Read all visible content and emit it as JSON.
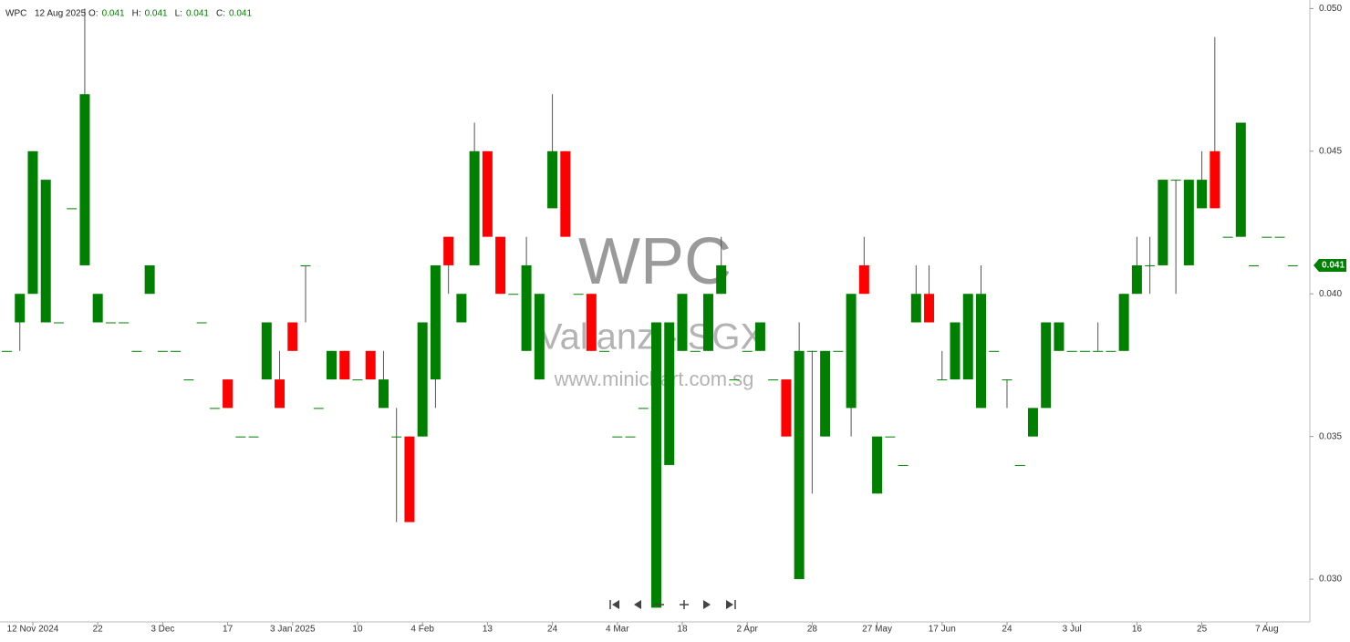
{
  "header": {
    "symbol": "WPC",
    "date": "12 Aug 2025",
    "fields": [
      {
        "label": "O:",
        "value": 0.041
      },
      {
        "label": "H:",
        "value": 0.041
      },
      {
        "label": "L:",
        "value": 0.041
      },
      {
        "label": "C:",
        "value": 0.041
      }
    ]
  },
  "watermark": {
    "title": "WPC",
    "subtitle": "Valianz - SGX",
    "url": "www.minichart.com.sg"
  },
  "chart_data": {
    "type": "candlestick",
    "title": "WPC",
    "categories": [
      null,
      null,
      "12 Nov 2024",
      null,
      null,
      null,
      null,
      "22",
      null,
      null,
      null,
      null,
      "3 Dec",
      null,
      null,
      null,
      null,
      "17",
      null,
      null,
      null,
      null,
      "3 Jan 2025",
      null,
      null,
      null,
      null,
      "10",
      null,
      null,
      null,
      null,
      "4 Feb",
      null,
      null,
      null,
      null,
      "13",
      null,
      null,
      null,
      null,
      "24",
      null,
      null,
      null,
      null,
      "4 Mar",
      null,
      null,
      null,
      null,
      "18",
      null,
      null,
      null,
      null,
      "2 Apr",
      null,
      null,
      null,
      null,
      "28",
      null,
      null,
      null,
      null,
      "27 May",
      null,
      null,
      null,
      null,
      "17 Jun",
      null,
      null,
      null,
      null,
      "24",
      null,
      null,
      null,
      null,
      "3 Jul",
      null,
      null,
      null,
      null,
      "16",
      null,
      null,
      null,
      null,
      "25",
      null,
      null,
      null,
      null,
      "7 Aug",
      null,
      null
    ],
    "open": [
      0.038,
      0.039,
      0.04,
      0.039,
      0.039,
      0.043,
      0.041,
      0.039,
      0.039,
      0.039,
      0.038,
      0.04,
      0.038,
      0.038,
      0.037,
      0.039,
      0.036,
      0.037,
      0.035,
      0.035,
      0.037,
      0.037,
      0.039,
      0.041,
      0.036,
      0.037,
      0.038,
      0.037,
      0.038,
      0.036,
      0.035,
      0.035,
      0.035,
      0.037,
      0.042,
      0.039,
      0.041,
      0.045,
      0.042,
      0.04,
      0.038,
      0.037,
      0.043,
      0.045,
      0.04,
      0.04,
      0.038,
      0.035,
      0.035,
      0.036,
      0.029,
      0.034,
      0.038,
      0.038,
      0.038,
      0.04,
      0.037,
      0.038,
      0.038,
      0.037,
      0.037,
      0.03,
      0.038,
      0.035,
      0.038,
      0.036,
      0.041,
      0.033,
      0.035,
      0.034,
      0.039,
      0.04,
      0.037,
      0.037,
      0.037,
      0.036,
      0.038,
      0.037,
      0.034,
      0.035,
      0.036,
      0.038,
      0.038,
      0.038,
      0.038,
      0.038,
      0.038,
      0.04,
      0.041,
      0.041,
      0.044,
      0.041,
      0.043,
      0.045,
      0.042,
      0.042,
      0.041,
      0.042,
      0.042,
      0.041
    ],
    "high": [
      0.038,
      0.04,
      0.045,
      0.044,
      0.039,
      0.043,
      0.05,
      0.04,
      0.039,
      0.039,
      0.038,
      0.041,
      0.038,
      0.038,
      0.037,
      0.039,
      0.036,
      0.037,
      0.035,
      0.035,
      0.039,
      0.038,
      0.039,
      0.041,
      0.036,
      0.038,
      0.038,
      0.037,
      0.038,
      0.038,
      0.036,
      0.035,
      0.039,
      0.041,
      0.042,
      0.04,
      0.046,
      0.045,
      0.042,
      0.04,
      0.042,
      0.04,
      0.047,
      0.045,
      0.04,
      0.04,
      0.038,
      0.035,
      0.035,
      0.036,
      0.039,
      0.039,
      0.04,
      0.038,
      0.04,
      0.042,
      0.037,
      0.038,
      0.039,
      0.037,
      0.037,
      0.039,
      0.038,
      0.038,
      0.038,
      0.04,
      0.042,
      0.035,
      0.035,
      0.034,
      0.041,
      0.041,
      0.038,
      0.039,
      0.04,
      0.041,
      0.038,
      0.037,
      0.034,
      0.036,
      0.039,
      0.039,
      0.038,
      0.038,
      0.039,
      0.038,
      0.04,
      0.042,
      0.042,
      0.044,
      0.044,
      0.044,
      0.045,
      0.049,
      0.042,
      0.046,
      0.041,
      0.042,
      0.042,
      0.041
    ],
    "low": [
      0.038,
      0.038,
      0.04,
      0.039,
      0.039,
      0.043,
      0.041,
      0.039,
      0.039,
      0.039,
      0.038,
      0.04,
      0.038,
      0.038,
      0.037,
      0.039,
      0.036,
      0.036,
      0.035,
      0.035,
      0.037,
      0.036,
      0.038,
      0.039,
      0.036,
      0.037,
      0.037,
      0.037,
      0.037,
      0.036,
      0.032,
      0.032,
      0.035,
      0.036,
      0.04,
      0.039,
      0.041,
      0.042,
      0.04,
      0.04,
      0.038,
      0.037,
      0.043,
      0.042,
      0.04,
      0.038,
      0.038,
      0.035,
      0.035,
      0.036,
      0.029,
      0.034,
      0.038,
      0.038,
      0.038,
      0.04,
      0.037,
      0.038,
      0.038,
      0.037,
      0.035,
      0.03,
      0.033,
      0.035,
      0.038,
      0.035,
      0.04,
      0.033,
      0.035,
      0.034,
      0.039,
      0.039,
      0.037,
      0.037,
      0.037,
      0.036,
      0.038,
      0.036,
      0.034,
      0.035,
      0.036,
      0.038,
      0.038,
      0.038,
      0.038,
      0.038,
      0.038,
      0.04,
      0.04,
      0.041,
      0.04,
      0.041,
      0.043,
      0.043,
      0.042,
      0.042,
      0.041,
      0.042,
      0.042,
      0.041
    ],
    "close": [
      0.038,
      0.04,
      0.045,
      0.044,
      0.039,
      0.043,
      0.047,
      0.04,
      0.039,
      0.039,
      0.038,
      0.041,
      0.038,
      0.038,
      0.037,
      0.039,
      0.036,
      0.036,
      0.035,
      0.035,
      0.039,
      0.036,
      0.038,
      0.041,
      0.036,
      0.038,
      0.037,
      0.037,
      0.037,
      0.037,
      0.035,
      0.032,
      0.039,
      0.041,
      0.041,
      0.04,
      0.045,
      0.042,
      0.04,
      0.04,
      0.041,
      0.04,
      0.045,
      0.042,
      0.04,
      0.038,
      0.038,
      0.035,
      0.035,
      0.036,
      0.039,
      0.039,
      0.04,
      0.038,
      0.04,
      0.041,
      0.037,
      0.038,
      0.039,
      0.037,
      0.035,
      0.038,
      0.038,
      0.038,
      0.038,
      0.04,
      0.04,
      0.035,
      0.035,
      0.034,
      0.04,
      0.039,
      0.037,
      0.039,
      0.04,
      0.04,
      0.038,
      0.037,
      0.034,
      0.036,
      0.039,
      0.039,
      0.038,
      0.038,
      0.038,
      0.038,
      0.04,
      0.041,
      0.041,
      0.044,
      0.044,
      0.044,
      0.044,
      0.043,
      0.042,
      0.046,
      0.041,
      0.042,
      0.042,
      0.041
    ],
    "up_color": "#008000",
    "down_color": "#ff0000",
    "wick_color": "#555555",
    "last_price": 0.041,
    "ylim": [
      0.0285,
      0.0503
    ],
    "yticks": [
      {
        "value": 0.03,
        "label": "0.030"
      },
      0.035,
      {
        "value": 0.04,
        "label": "0.040"
      },
      0.045,
      {
        "value": 0.05,
        "label": "0.050"
      }
    ],
    "grid": false
  }
}
